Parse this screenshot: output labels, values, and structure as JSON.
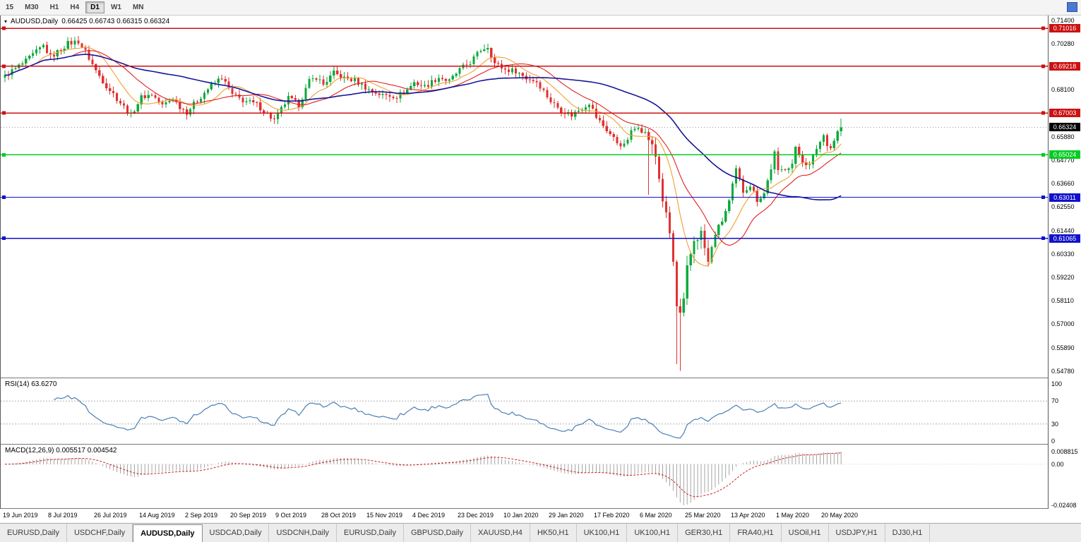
{
  "toolbar": {
    "timeframes": [
      "15",
      "M30",
      "H1",
      "H4",
      "D1",
      "W1",
      "MN"
    ],
    "active_timeframe": "D1"
  },
  "icons": {
    "symbol_dropdown": "▾"
  },
  "colors": {
    "bull": "#0caa3c",
    "bear": "#e03131",
    "ma_fast": "#f0a030",
    "ma_mid": "#e02020",
    "ma_slow": "#16169a",
    "rsi_line": "#4a7fb5",
    "rsi_guides": "#b0b0b0",
    "macd_hist": "#999999",
    "macd_signal": "#cc2222",
    "current_price_line": "#9a9a9a",
    "current_price_badge": "#000000"
  },
  "chart": {
    "symbol_label": "AUDUSD,Daily",
    "ohlc_label": "0.66425 0.66743 0.66315 0.66324",
    "current_price": 0.66324,
    "current_price_label": "0.66324",
    "price_axis": {
      "min": 0.5447,
      "max": 0.7162,
      "ticks": [
        "0.71400",
        "0.70280",
        "0.68100",
        "0.65880",
        "0.64770",
        "0.63660",
        "0.62550",
        "0.61440",
        "0.60330",
        "0.59220",
        "0.58110",
        "0.57000",
        "0.55890",
        "0.54780"
      ],
      "tick_values": [
        0.714,
        0.7028,
        0.681,
        0.6588,
        0.6477,
        0.6366,
        0.6255,
        0.6144,
        0.6033,
        0.5922,
        0.5811,
        0.57,
        0.5589,
        0.5478
      ]
    },
    "hlines": [
      {
        "price": 0.71016,
        "label": "0.71016",
        "color": "#cc1111"
      },
      {
        "price": 0.69218,
        "label": "0.69218",
        "color": "#cc1111"
      },
      {
        "price": 0.67003,
        "label": "0.67003",
        "color": "#cc1111"
      },
      {
        "price": 0.65024,
        "label": "0.65024",
        "color": "#00cc22"
      },
      {
        "price": 0.63011,
        "label": "0.63011",
        "color": "#1111cc"
      },
      {
        "price": 0.61065,
        "label": "0.61065",
        "color": "#1111cc"
      }
    ]
  },
  "chart_data": {
    "type": "candlestick",
    "symbol": "AUDUSD",
    "timeframe": "Daily",
    "candle_count": 240,
    "ohlc_current": {
      "open": 0.66425,
      "high": 0.66743,
      "low": 0.66315,
      "close": 0.66324
    },
    "close_anchors": [
      [
        0,
        0.688
      ],
      [
        3,
        0.691
      ],
      [
        6,
        0.6945
      ],
      [
        9,
        0.699
      ],
      [
        11,
        0.702
      ],
      [
        13,
        0.6965
      ],
      [
        15,
        0.699
      ],
      [
        18,
        0.703
      ],
      [
        21,
        0.704
      ],
      [
        23,
        0.699
      ],
      [
        26,
        0.69
      ],
      [
        29,
        0.683
      ],
      [
        32,
        0.677
      ],
      [
        36,
        0.669
      ],
      [
        39,
        0.6775
      ],
      [
        42,
        0.679
      ],
      [
        45,
        0.6735
      ],
      [
        48,
        0.677
      ],
      [
        50,
        0.673
      ],
      [
        52,
        0.6705
      ],
      [
        55,
        0.676
      ],
      [
        58,
        0.6815
      ],
      [
        62,
        0.687
      ],
      [
        65,
        0.6785
      ],
      [
        68,
        0.676
      ],
      [
        72,
        0.674
      ],
      [
        75,
        0.6695
      ],
      [
        77,
        0.6665
      ],
      [
        79,
        0.672
      ],
      [
        81,
        0.677
      ],
      [
        84,
        0.674
      ],
      [
        87,
        0.685
      ],
      [
        89,
        0.687
      ],
      [
        91,
        0.6835
      ],
      [
        94,
        0.689
      ],
      [
        97,
        0.6865
      ],
      [
        100,
        0.6855
      ],
      [
        104,
        0.681
      ],
      [
        108,
        0.6785
      ],
      [
        112,
        0.678
      ],
      [
        115,
        0.681
      ],
      [
        117,
        0.6845
      ],
      [
        120,
        0.6825
      ],
      [
        124,
        0.687
      ],
      [
        127,
        0.685
      ],
      [
        130,
        0.6905
      ],
      [
        133,
        0.694
      ],
      [
        136,
        0.7
      ],
      [
        138,
        0.7015
      ],
      [
        140,
        0.6935
      ],
      [
        143,
        0.6905
      ],
      [
        146,
        0.69
      ],
      [
        149,
        0.6865
      ],
      [
        152,
        0.685
      ],
      [
        154,
        0.6805
      ],
      [
        156,
        0.6755
      ],
      [
        159,
        0.6715
      ],
      [
        162,
        0.669
      ],
      [
        165,
        0.6725
      ],
      [
        167,
        0.675
      ],
      [
        169,
        0.668
      ],
      [
        172,
        0.662
      ],
      [
        175,
        0.656
      ],
      [
        177,
        0.6545
      ],
      [
        179,
        0.661
      ],
      [
        181,
        0.664
      ],
      [
        184,
        0.658
      ],
      [
        186,
        0.6495
      ],
      [
        188,
        0.629
      ],
      [
        190,
        0.613
      ],
      [
        191,
        0.599
      ],
      [
        192,
        0.578
      ],
      [
        193,
        0.574
      ],
      [
        194,
        0.58
      ],
      [
        195,
        0.596
      ],
      [
        197,
        0.61
      ],
      [
        199,
        0.613
      ],
      [
        201,
        0.599
      ],
      [
        203,
        0.613
      ],
      [
        205,
        0.619
      ],
      [
        207,
        0.628
      ],
      [
        209,
        0.643
      ],
      [
        211,
        0.633
      ],
      [
        213,
        0.636
      ],
      [
        215,
        0.629
      ],
      [
        217,
        0.632
      ],
      [
        219,
        0.644
      ],
      [
        220,
        0.651
      ],
      [
        221,
        0.642
      ],
      [
        223,
        0.644
      ],
      [
        225,
        0.646
      ],
      [
        226,
        0.653
      ],
      [
        228,
        0.6475
      ],
      [
        230,
        0.645
      ],
      [
        232,
        0.6535
      ],
      [
        234,
        0.6595
      ],
      [
        235,
        0.6555
      ],
      [
        236,
        0.6535
      ],
      [
        238,
        0.661
      ],
      [
        239,
        0.66324
      ]
    ],
    "special_wicks": [
      {
        "i": 184,
        "low": 0.6313
      },
      {
        "i": 192,
        "low": 0.551
      },
      {
        "i": 193,
        "low": 0.5478
      }
    ],
    "moving_averages": [
      {
        "period": 10
      },
      {
        "period": 20
      },
      {
        "period": 50
      }
    ],
    "date_labels": [
      "19 Jun 2019",
      "8 Jul 2019",
      "26 Jul 2019",
      "14 Aug 2019",
      "2 Sep 2019",
      "20 Sep 2019",
      "9 Oct 2019",
      "28 Oct 2019",
      "15 Nov 2019",
      "4 Dec 2019",
      "23 Dec 2019",
      "10 Jan 2020",
      "29 Jan 2020",
      "17 Feb 2020",
      "6 Mar 2020",
      "25 Mar 2020",
      "13 Apr 2020",
      "1 May 2020",
      "20 May 2020"
    ],
    "date_label_step": 13
  },
  "rsi": {
    "label": "RSI(14) 63.6270",
    "period": 14,
    "current": 63.627,
    "axis_labels": [
      "100",
      "70",
      "30",
      "0"
    ],
    "axis_values": [
      100,
      70,
      30,
      0
    ],
    "guide_levels": [
      70,
      30
    ]
  },
  "macd": {
    "label": "MACD(12,26,9) 0.005517 0.004542",
    "fast": 12,
    "slow": 26,
    "signal": 9,
    "current_macd": 0.005517,
    "current_signal": 0.004542,
    "axis_labels": [
      "0.008815",
      "0.00",
      "-0.02408"
    ]
  },
  "tabs": {
    "items": [
      "EURUSD,Daily",
      "USDCHF,Daily",
      "AUDUSD,Daily",
      "USDCAD,Daily",
      "USDCNH,Daily",
      "EURUSD,Daily",
      "GBPUSD,Daily",
      "XAUUSD,H4",
      "HK50,H1",
      "UK100,H1",
      "UK100,H1",
      "GER30,H1",
      "FRA40,H1",
      "USOil,H1",
      "USDJPY,H1",
      "DJ30,H1"
    ],
    "active_index": 2
  }
}
